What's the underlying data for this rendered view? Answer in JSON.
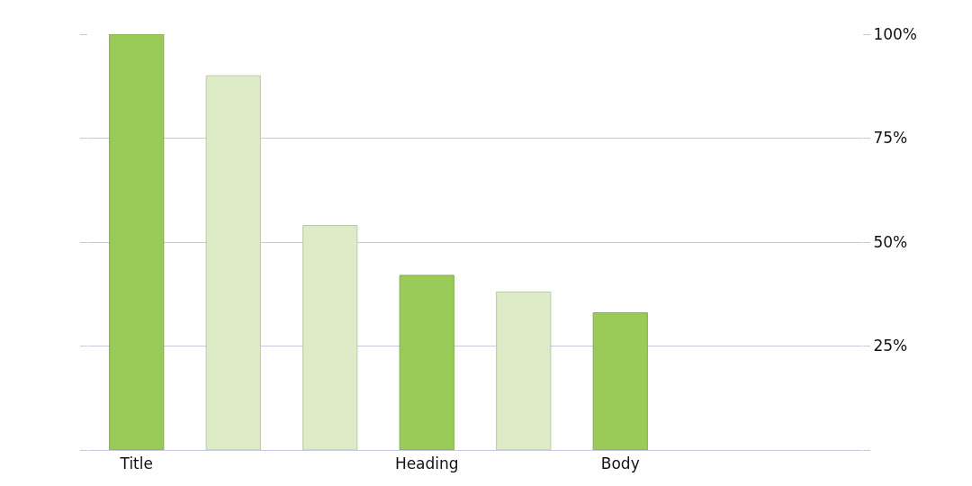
{
  "chart_data": {
    "type": "bar",
    "categories": [
      "Title",
      null,
      null,
      "Heading",
      null,
      "Body",
      null,
      null
    ],
    "values": [
      100,
      90,
      54,
      42,
      38,
      33,
      null,
      null
    ],
    "colors": [
      "#9aca58",
      "#ddebc6",
      "#ddebc6",
      "#9aca58",
      "#ddebc6",
      "#9aca58",
      "#9aca58",
      "#9aca58"
    ],
    "ylim": [
      0,
      100
    ],
    "yticks": [
      {
        "value": 0,
        "label": null
      },
      {
        "value": 25,
        "label": "25%"
      },
      {
        "value": 50,
        "label": "50%"
      },
      {
        "value": 75,
        "label": "75%"
      },
      {
        "value": 100,
        "label": "100%"
      }
    ],
    "grid": "y",
    "legend": false
  }
}
